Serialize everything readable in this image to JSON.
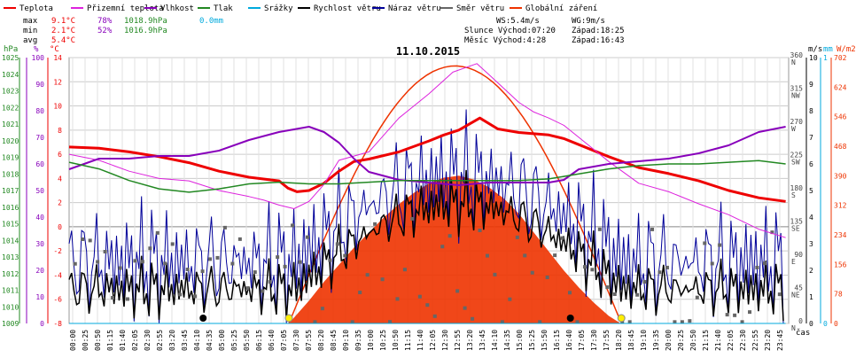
{
  "legend": [
    {
      "label": "Teplota",
      "color": "#ee0000"
    },
    {
      "label": "Přizemní teplota",
      "color": "#dd22dd"
    },
    {
      "label": "Vlhkost",
      "color": "#8800bb"
    },
    {
      "label": "Tlak",
      "color": "#228822"
    },
    {
      "label": "Srážky",
      "color": "#00aadd"
    },
    {
      "label": "Rychlost větru",
      "color": "#000000"
    },
    {
      "label": "Náraz větru",
      "color": "#000099"
    },
    {
      "label": "Směr větru",
      "color": "#666666"
    },
    {
      "label": "Globální záření",
      "color": "#ee3300"
    }
  ],
  "stats": {
    "max": {
      "label": "max",
      "temp": "9.1°C",
      "hum": "78%",
      "press": "1018.9hPa",
      "rain": "0.0mm"
    },
    "min": {
      "label": "min",
      "temp": "2.1°C",
      "hum": "52%",
      "press": "1016.9hPa"
    },
    "avg": {
      "label": "avg",
      "temp": "5.4°C"
    }
  },
  "info": {
    "ws": "WS:5.4m/s",
    "wg": "WG:9m/s",
    "slunce": "Slunce Východ:07:20",
    "slunce_zapad": "Západ:18:25",
    "mesic": "Měsíc  Východ:4:28",
    "mesic_zapad": "Západ:16:43"
  },
  "colors": {
    "temp": "#ee0000",
    "ground": "#dd22dd",
    "hum": "#8800bb",
    "press": "#228822",
    "wind": "#000000",
    "gust": "#000099",
    "dir": "#666666",
    "rad": "#ee3300",
    "rain": "#00aadd",
    "grid": "#cccccc"
  },
  "chart_data": {
    "type": "line",
    "title": "11.10.2015",
    "xlabel": "čas",
    "x_ticks": [
      "00:00",
      "00:25",
      "00:50",
      "01:15",
      "01:40",
      "02:05",
      "02:30",
      "02:55",
      "03:20",
      "03:45",
      "04:10",
      "04:35",
      "05:00",
      "05:25",
      "05:50",
      "06:15",
      "06:40",
      "07:05",
      "07:30",
      "07:55",
      "08:20",
      "08:45",
      "09:10",
      "09:35",
      "10:00",
      "10:25",
      "10:50",
      "11:15",
      "11:40",
      "12:05",
      "12:30",
      "12:55",
      "13:20",
      "13:45",
      "14:10",
      "14:35",
      "15:00",
      "15:25",
      "15:50",
      "16:15",
      "16:40",
      "17:05",
      "17:30",
      "17:55",
      "18:20",
      "18:45",
      "19:10",
      "19:35",
      "20:00",
      "20:25",
      "20:50",
      "21:15",
      "21:40",
      "22:05",
      "22:30",
      "22:55",
      "23:20",
      "23:45"
    ],
    "axes": {
      "pressure": {
        "label": "hPa",
        "min": 1009,
        "max": 1025,
        "ticks": [
          1009,
          1010,
          1011,
          1012,
          1013,
          1014,
          1015,
          1016,
          1017,
          1018,
          1019,
          1020,
          1021,
          1022,
          1023,
          1024,
          1025
        ]
      },
      "humidity": {
        "label": "%",
        "min": 0,
        "max": 100,
        "ticks": [
          0,
          10,
          20,
          30,
          40,
          50,
          60,
          70,
          80,
          90,
          100
        ]
      },
      "temperature": {
        "label": "°C",
        "min": -8,
        "max": 14,
        "ticks": [
          -8,
          -6,
          -4,
          -2,
          0,
          2,
          4,
          6,
          8,
          10,
          12,
          14
        ]
      },
      "wind_dir": {
        "min": 0,
        "max": 360,
        "ticks": [
          0,
          45,
          90,
          135,
          180,
          225,
          270,
          315,
          360
        ],
        "labels": [
          "N",
          "NE",
          "E",
          "SE",
          "S",
          "SW",
          "W",
          "NW",
          "N"
        ]
      },
      "wind_speed": {
        "label": "m/s",
        "min": 0,
        "max": 10,
        "ticks": [
          0,
          1,
          2,
          3,
          4,
          5,
          6,
          7,
          8,
          9,
          10
        ]
      },
      "rain": {
        "label": "mm",
        "min": 0,
        "max": 1,
        "ticks": [
          0,
          1
        ]
      },
      "radiation": {
        "label": "W/m2",
        "min": 0,
        "max": 702,
        "ticks": [
          0,
          78,
          156,
          234,
          312,
          390,
          468,
          546,
          624,
          702
        ]
      }
    },
    "series": [
      {
        "name": "Teplota",
        "axis": "temperature",
        "points": [
          [
            0,
            6.6
          ],
          [
            1,
            6.5
          ],
          [
            2,
            6.2
          ],
          [
            3,
            5.8
          ],
          [
            4,
            5.3
          ],
          [
            5,
            4.6
          ],
          [
            6,
            4.1
          ],
          [
            7,
            3.8
          ],
          [
            7.3,
            3.2
          ],
          [
            7.6,
            2.9
          ],
          [
            8,
            3.0
          ],
          [
            8.5,
            3.6
          ],
          [
            9,
            4.6
          ],
          [
            9.5,
            5.4
          ],
          [
            10,
            5.6
          ],
          [
            11,
            6.2
          ],
          [
            12,
            7.1
          ],
          [
            12.5,
            7.6
          ],
          [
            13,
            8.0
          ],
          [
            13.7,
            9.0
          ],
          [
            14.3,
            8.1
          ],
          [
            15,
            7.8
          ],
          [
            16,
            7.6
          ],
          [
            16.5,
            7.3
          ],
          [
            17,
            6.8
          ],
          [
            18,
            5.8
          ],
          [
            19,
            4.9
          ],
          [
            20,
            4.4
          ],
          [
            21,
            3.8
          ],
          [
            22,
            3.0
          ],
          [
            23,
            2.4
          ],
          [
            23.9,
            2.1
          ]
        ]
      },
      {
        "name": "Přizemní teplota",
        "axis": "temperature",
        "points": [
          [
            0,
            6.0
          ],
          [
            1,
            5.5
          ],
          [
            2,
            4.6
          ],
          [
            3,
            4.0
          ],
          [
            4,
            3.8
          ],
          [
            5,
            3.0
          ],
          [
            6,
            2.5
          ],
          [
            6.5,
            2.2
          ],
          [
            7,
            1.8
          ],
          [
            7.5,
            1.5
          ],
          [
            8,
            2.1
          ],
          [
            8.5,
            3.5
          ],
          [
            9,
            5.5
          ],
          [
            10,
            6.2
          ],
          [
            11,
            9.0
          ],
          [
            12,
            11.0
          ],
          [
            12.8,
            12.8
          ],
          [
            13.6,
            13.5
          ],
          [
            14,
            12.6
          ],
          [
            15,
            10.3
          ],
          [
            15.5,
            9.5
          ],
          [
            16,
            9.0
          ],
          [
            16.5,
            8.4
          ],
          [
            17,
            7.4
          ],
          [
            18,
            5.4
          ],
          [
            19,
            3.6
          ],
          [
            20,
            2.9
          ],
          [
            21,
            1.9
          ],
          [
            22,
            1.0
          ],
          [
            23,
            -0.2
          ],
          [
            23.9,
            -0.9
          ]
        ]
      },
      {
        "name": "Vlhkost",
        "axis": "humidity",
        "points": [
          [
            0,
            58
          ],
          [
            1,
            62
          ],
          [
            2,
            62
          ],
          [
            3,
            63
          ],
          [
            4,
            63
          ],
          [
            5,
            65
          ],
          [
            6,
            69
          ],
          [
            7,
            72
          ],
          [
            7.5,
            73
          ],
          [
            8,
            74
          ],
          [
            8.5,
            72
          ],
          [
            9,
            68
          ],
          [
            9.5,
            62
          ],
          [
            10,
            57
          ],
          [
            11,
            54
          ],
          [
            12,
            53
          ],
          [
            13,
            52
          ],
          [
            14,
            53
          ],
          [
            15,
            53
          ],
          [
            16,
            53
          ],
          [
            16.5,
            54
          ],
          [
            17,
            58
          ],
          [
            18,
            60
          ],
          [
            19,
            61
          ],
          [
            20,
            62
          ],
          [
            21,
            64
          ],
          [
            22,
            67
          ],
          [
            23,
            72
          ],
          [
            23.9,
            74
          ]
        ]
      },
      {
        "name": "Tlak",
        "axis": "pressure",
        "points": [
          [
            0,
            1018.7
          ],
          [
            1,
            1018.3
          ],
          [
            2,
            1017.6
          ],
          [
            3,
            1017.1
          ],
          [
            4,
            1016.9
          ],
          [
            5,
            1017.1
          ],
          [
            6,
            1017.4
          ],
          [
            7,
            1017.5
          ],
          [
            8,
            1017.4
          ],
          [
            9,
            1017.4
          ],
          [
            10,
            1017.5
          ],
          [
            11,
            1017.6
          ],
          [
            12,
            1017.6
          ],
          [
            13,
            1017.6
          ],
          [
            14,
            1017.6
          ],
          [
            15,
            1017.6
          ],
          [
            16,
            1017.7
          ],
          [
            17,
            1018.0
          ],
          [
            18,
            1018.3
          ],
          [
            19,
            1018.5
          ],
          [
            20,
            1018.6
          ],
          [
            21,
            1018.6
          ],
          [
            22,
            1018.7
          ],
          [
            23,
            1018.8
          ],
          [
            23.9,
            1018.6
          ]
        ]
      },
      {
        "name": "Globální záření",
        "axis": "radiation",
        "points": [
          [
            7.33,
            0
          ],
          [
            8,
            60
          ],
          [
            8.5,
            110
          ],
          [
            9,
            155
          ],
          [
            9.5,
            200
          ],
          [
            10,
            240
          ],
          [
            10.5,
            280
          ],
          [
            11,
            315
          ],
          [
            11.5,
            345
          ],
          [
            12,
            370
          ],
          [
            12.5,
            385
          ],
          [
            13,
            390
          ],
          [
            13.5,
            380
          ],
          [
            14,
            360
          ],
          [
            14.5,
            330
          ],
          [
            15,
            290
          ],
          [
            15.5,
            240
          ],
          [
            16,
            190
          ],
          [
            16.5,
            140
          ],
          [
            17,
            95
          ],
          [
            17.5,
            55
          ],
          [
            18,
            20
          ],
          [
            18.4,
            0
          ]
        ]
      },
      {
        "name": "Srážky",
        "axis": "rain",
        "points": [
          [
            0,
            0
          ],
          [
            23.9,
            0
          ]
        ]
      }
    ]
  }
}
